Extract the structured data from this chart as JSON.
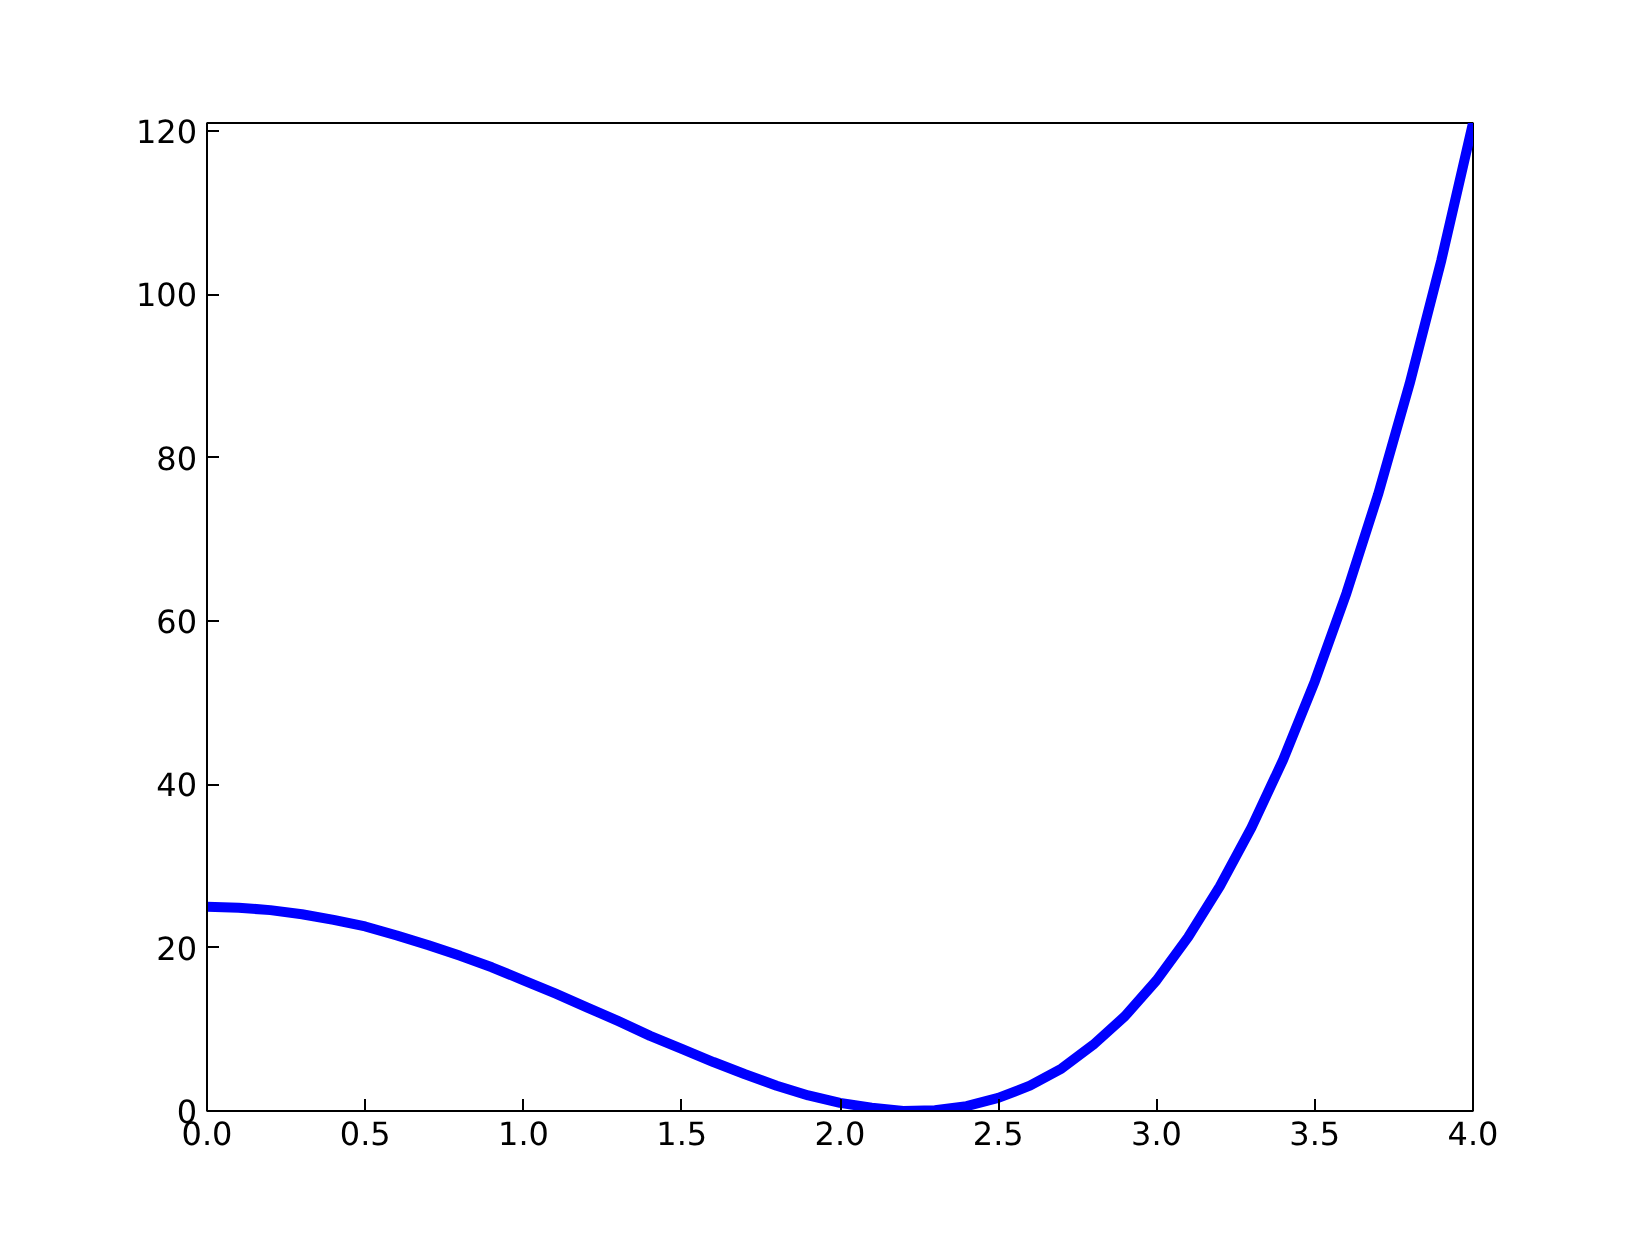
{
  "chart_data": {
    "type": "line",
    "x": [
      0,
      0.1,
      0.2,
      0.3,
      0.4,
      0.5,
      0.6,
      0.7,
      0.8,
      0.9,
      1.0,
      1.1,
      1.2,
      1.3,
      1.4,
      1.5,
      1.6,
      1.7,
      1.8,
      1.9,
      2.0,
      2.1,
      2.2,
      2.3,
      2.4,
      2.5,
      2.6,
      2.7,
      2.8,
      2.9,
      3.0,
      3.1,
      3.2,
      3.3,
      3.4,
      3.5,
      3.6,
      3.7,
      3.8,
      3.9,
      4.0
    ],
    "series": [
      {
        "color": "#0000ff",
        "values": [
          25,
          24.9,
          24.6,
          24.1,
          23.4,
          22.6,
          21.5,
          20.3,
          19.0,
          17.6,
          16,
          14.4,
          12.7,
          11.0,
          9.2,
          7.6,
          6.0,
          4.5,
          3.1,
          1.9,
          1.0,
          0.4,
          0.0,
          0.1,
          0.6,
          1.6,
          3.1,
          5.2,
          8.1,
          11.6,
          16,
          21.3,
          27.5,
          34.7,
          43.0,
          52.6,
          63.4,
          75.5,
          89.1,
          104.2,
          121
        ]
      }
    ],
    "xlim": [
      0,
      4
    ],
    "ylim": [
      0,
      121
    ],
    "xticks": [
      {
        "value": 0,
        "label": "0.0"
      },
      0.5,
      {
        "value": 1,
        "label": "1.0"
      },
      1.5,
      {
        "value": 2,
        "label": "2.0"
      },
      2.5,
      {
        "value": 3,
        "label": "3.0"
      },
      3.5,
      {
        "value": 4,
        "label": "4.0"
      }
    ],
    "yticks": [
      0,
      20,
      40,
      60,
      80,
      100,
      120
    ],
    "grid": false,
    "marker": "none",
    "line_style": "solid"
  }
}
